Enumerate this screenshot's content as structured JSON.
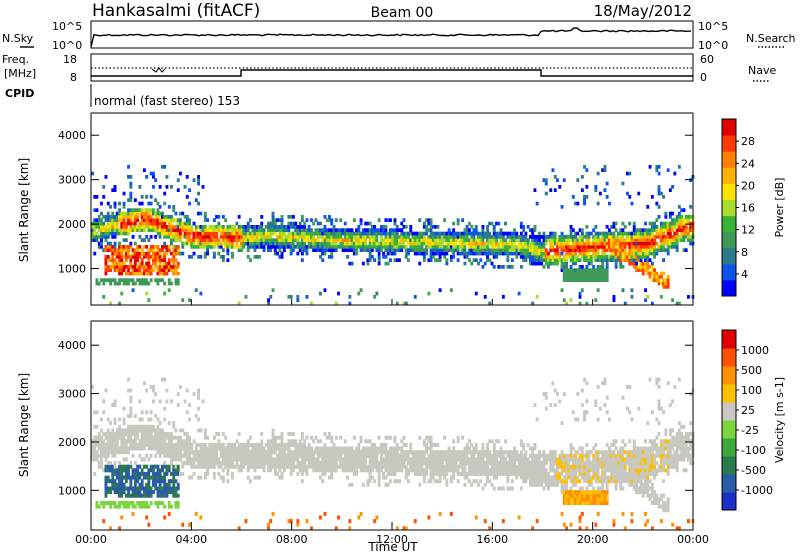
{
  "header": {
    "station": "Hankasalmi (fitACF)",
    "beam": "Beam 00",
    "date": "18/May/2012"
  },
  "noise_panel": {
    "left_label": "N.Sky",
    "right_label": "N.Search",
    "ticks": [
      "10^5",
      "10^0"
    ]
  },
  "freq_panel": {
    "label_line1": "Freq.",
    "label_line2": "[MHz]",
    "left_ticks": [
      "18",
      "8"
    ],
    "right_label": "Nave",
    "right_ticks": [
      "60",
      "0"
    ]
  },
  "cpid": {
    "label": "CPID",
    "text": "normal (fast stereo) 153"
  },
  "chart_data": [
    {
      "type": "heatmap",
      "title": "",
      "ylabel": "Slant Range [km]",
      "xlabel": "",
      "y_ticks": [
        "1000",
        "2000",
        "3000",
        "4000"
      ],
      "ylim": [
        180,
        4500
      ],
      "colorbar": {
        "label": "Power [dB]",
        "ticks": [
          "28",
          "24",
          "20",
          "16",
          "12",
          "8",
          "4"
        ],
        "colors": [
          "#0000ff",
          "#0b55e8",
          "#2c7a8a",
          "#3f9a59",
          "#38b334",
          "#a7dc2f",
          "#ffe100",
          "#ffb300",
          "#ff8000",
          "#ff3a00",
          "#e00000"
        ]
      }
    },
    {
      "type": "heatmap",
      "title": "",
      "ylabel": "Slant Range [km]",
      "xlabel": "Time UT",
      "x_ticks": [
        "00:00",
        "04:00",
        "08:00",
        "12:00",
        "16:00",
        "20:00",
        "00:00"
      ],
      "y_ticks": [
        "1000",
        "2000",
        "3000",
        "4000"
      ],
      "ylim": [
        180,
        4500
      ],
      "colorbar": {
        "label": "Velocity [m s-1]",
        "ticks": [
          "1000",
          "500",
          "100",
          "25",
          "-25",
          "-100",
          "-500",
          "-1000"
        ],
        "colors": [
          "#1a30c8",
          "#2a5aa8",
          "#2b7a4b",
          "#3aa83a",
          "#7ad63a",
          "#c8c8c0",
          "#ffc000",
          "#ff9000",
          "#ff5000",
          "#e00000"
        ]
      }
    }
  ]
}
